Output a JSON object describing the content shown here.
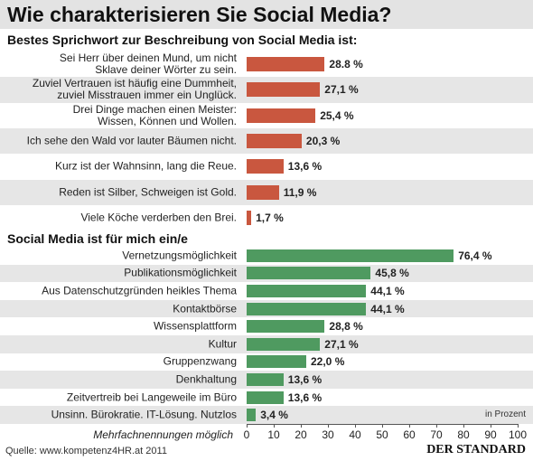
{
  "title": "Wie charakterisieren Sie Social Media?",
  "source": "Quelle: www.kompetenz4HR.at 2011",
  "publisher": "DER STANDARD",
  "chart_data": [
    {
      "type": "bar",
      "orientation": "horizontal",
      "title": "Bestes Sprichwort zur Beschreibung von Social Media ist:",
      "categories": [
        "Sei Herr über deinen Mund, um nicht\nSklave deiner Wörter zu sein.",
        "Zuviel Vertrauen ist häufig eine Dummheit,\nzuviel Misstrauen immer ein Unglück.",
        "Drei Dinge machen einen Meister:\nWissen, Können und Wollen.",
        "Ich sehe den Wald vor lauter Bäumen nicht.",
        "Kurz ist der Wahnsinn, lang die Reue.",
        "Reden ist Silber, Schweigen ist Gold.",
        "Viele Köche verderben den Brei."
      ],
      "values": [
        28.8,
        27.1,
        25.4,
        20.3,
        13.6,
        11.9,
        1.7
      ],
      "value_labels": [
        "28.8 %",
        "27,1 %",
        "25,4 %",
        "20,3 %",
        "13,6 %",
        "11,9 %",
        "1,7 %"
      ],
      "color": "#c9573f",
      "xlim": [
        0,
        100
      ]
    },
    {
      "type": "bar",
      "orientation": "horizontal",
      "title": "Social Media ist für mich ein/e",
      "categories": [
        "Vernetzungsmöglichkeit",
        "Publikationsmöglichkeit",
        "Aus Datenschutzgründen heikles Thema",
        "Kontaktbörse",
        "Wissensplattform",
        "Kultur",
        "Gruppenzwang",
        "Denkhaltung",
        "Zeitvertreib bei Langeweile im Büro",
        "Unsinn. Bürokratie. IT-Lösung. Nutzlos"
      ],
      "values": [
        76.4,
        45.8,
        44.1,
        44.1,
        28.8,
        27.1,
        22.0,
        13.6,
        13.6,
        3.4
      ],
      "value_labels": [
        "76,4 %",
        "45,8 %",
        "44,1 %",
        "44,1 %",
        "28,8 %",
        "27,1 %",
        "22,0 %",
        "13,6 %",
        "13,6 %",
        "3,4 %"
      ],
      "color": "#4f9a60",
      "xlim": [
        0,
        100
      ],
      "xticks": [
        0,
        10,
        20,
        30,
        40,
        50,
        60,
        70,
        80,
        90,
        100
      ],
      "xlabel": "in Prozent",
      "note": "Mehrfachnennungen möglich"
    }
  ]
}
